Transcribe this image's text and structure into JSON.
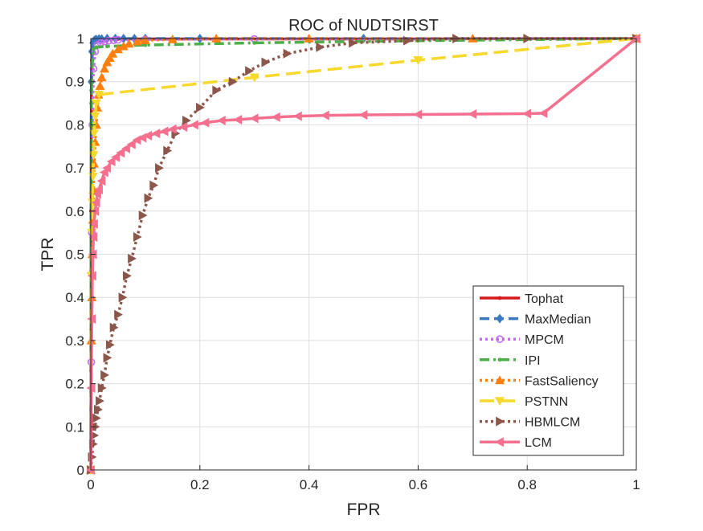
{
  "chart_data": {
    "type": "line",
    "title": "ROC of NUDTSIRST",
    "xlabel": "FPR",
    "ylabel": "TPR",
    "xlim": [
      0,
      1
    ],
    "ylim": [
      0,
      1
    ],
    "x_ticks": [
      "0",
      "0.2",
      "0.4",
      "0.6",
      "0.8",
      "1"
    ],
    "x_tick_values": [
      0,
      0.2,
      0.4,
      0.6,
      0.8,
      1
    ],
    "y_ticks": [
      "0",
      "0.1",
      "0.2",
      "0.3",
      "0.4",
      "0.5",
      "0.6",
      "0.7",
      "0.8",
      "0.9",
      "1"
    ],
    "y_tick_values": [
      0,
      0.1,
      0.2,
      0.3,
      0.4,
      0.5,
      0.6,
      0.7,
      0.8,
      0.9,
      1
    ],
    "grid": true,
    "legend_position": "bottom-right",
    "series": [
      {
        "name": "Tophat",
        "color": "#d7191c",
        "dash": "solid",
        "marker": "dot",
        "x": [
          0,
          0.0005,
          0.001,
          0.002,
          0.004,
          0.006,
          0.01,
          0.05,
          0.2,
          0.5,
          1
        ],
        "y": [
          0,
          0.6,
          0.85,
          0.95,
          0.985,
          0.995,
          0.998,
          0.999,
          0.999,
          0.999,
          1
        ]
      },
      {
        "name": "MaxMedian",
        "color": "#3a78bf",
        "dash": "dash",
        "marker": "diamond",
        "x": [
          0,
          0.001,
          0.002,
          0.004,
          0.006,
          0.008,
          0.01,
          0.015,
          0.02,
          0.03,
          0.045,
          0.06,
          0.08,
          0.1,
          0.2,
          0.5,
          1
        ],
        "y": [
          0,
          0.9,
          0.97,
          0.99,
          0.995,
          0.997,
          0.998,
          0.999,
          0.999,
          1,
          1,
          1,
          1,
          1,
          1,
          1,
          1
        ]
      },
      {
        "name": "MPCM",
        "color": "#c16bf2",
        "dash": "dot",
        "marker": "circle",
        "x": [
          0,
          0.001,
          0.002,
          0.003,
          0.005,
          0.008,
          0.012,
          0.018,
          0.025,
          0.033,
          0.042,
          0.05,
          0.1,
          0.3,
          1
        ],
        "y": [
          0,
          0.25,
          0.55,
          0.8,
          0.93,
          0.97,
          0.985,
          0.99,
          0.993,
          0.995,
          0.996,
          0.997,
          0.998,
          0.999,
          1
        ]
      },
      {
        "name": "IPI",
        "color": "#4daf4a",
        "dash": "dashdot",
        "marker": "dot",
        "x": [
          0,
          0.001,
          0.003,
          0.005,
          0.01,
          0.03,
          0.1,
          0.3,
          0.6,
          1
        ],
        "y": [
          0,
          0.88,
          0.95,
          0.975,
          0.98,
          0.982,
          0.985,
          0.99,
          0.995,
          1
        ]
      },
      {
        "name": "FastSaliency",
        "color": "#ff7f0e",
        "dash": "dot",
        "marker": "triangle-up",
        "x": [
          0,
          0.001,
          0.002,
          0.003,
          0.004,
          0.005,
          0.006,
          0.008,
          0.01,
          0.012,
          0.014,
          0.017,
          0.02,
          0.025,
          0.03,
          0.035,
          0.04,
          0.05,
          0.06,
          0.07,
          0.085,
          0.1,
          0.15,
          0.23,
          0.4,
          0.7,
          1
        ],
        "y": [
          0,
          0.3,
          0.4,
          0.5,
          0.58,
          0.65,
          0.71,
          0.76,
          0.8,
          0.84,
          0.87,
          0.89,
          0.91,
          0.93,
          0.945,
          0.955,
          0.965,
          0.975,
          0.982,
          0.988,
          0.993,
          0.996,
          0.998,
          1,
          1,
          1,
          1
        ]
      },
      {
        "name": "PSTNN",
        "color": "#f7d82c",
        "dash": "longdash",
        "marker": "triangle-down",
        "x": [
          0,
          0.001,
          0.002,
          0.003,
          0.004,
          0.005,
          0.006,
          0.008,
          0.01,
          0.015,
          0.3,
          0.6,
          1
        ],
        "y": [
          0,
          0.45,
          0.55,
          0.62,
          0.68,
          0.73,
          0.78,
          0.82,
          0.85,
          0.87,
          0.91,
          0.95,
          1
        ]
      },
      {
        "name": "HBMLCM",
        "color": "#8c564b",
        "dash": "dot",
        "marker": "triangle-right",
        "x": [
          0,
          0.002,
          0.004,
          0.006,
          0.008,
          0.01,
          0.013,
          0.016,
          0.02,
          0.025,
          0.03,
          0.035,
          0.042,
          0.05,
          0.058,
          0.066,
          0.075,
          0.085,
          0.095,
          0.105,
          0.115,
          0.125,
          0.14,
          0.155,
          0.175,
          0.2,
          0.23,
          0.26,
          0.29,
          0.32,
          0.36,
          0.42,
          0.48,
          0.58,
          0.67,
          0.8,
          1
        ],
        "y": [
          0,
          0.03,
          0.06,
          0.08,
          0.1,
          0.12,
          0.14,
          0.16,
          0.19,
          0.22,
          0.26,
          0.29,
          0.33,
          0.36,
          0.4,
          0.45,
          0.49,
          0.54,
          0.59,
          0.63,
          0.66,
          0.7,
          0.74,
          0.78,
          0.81,
          0.84,
          0.88,
          0.9,
          0.925,
          0.945,
          0.965,
          0.98,
          0.99,
          0.995,
          1,
          1,
          1
        ]
      },
      {
        "name": "LCM",
        "color": "#f5708f",
        "dash": "solid",
        "marker": "triangle-left",
        "x": [
          0,
          0.001,
          0.002,
          0.003,
          0.004,
          0.005,
          0.006,
          0.008,
          0.01,
          0.012,
          0.015,
          0.02,
          0.025,
          0.03,
          0.038,
          0.046,
          0.055,
          0.065,
          0.075,
          0.085,
          0.095,
          0.105,
          0.12,
          0.135,
          0.15,
          0.17,
          0.19,
          0.21,
          0.24,
          0.27,
          0.3,
          0.34,
          0.38,
          0.43,
          0.5,
          0.6,
          0.7,
          0.8,
          0.83,
          1
        ],
        "y": [
          0,
          0.19,
          0.35,
          0.45,
          0.5,
          0.54,
          0.57,
          0.6,
          0.62,
          0.64,
          0.65,
          0.67,
          0.69,
          0.7,
          0.715,
          0.725,
          0.735,
          0.745,
          0.755,
          0.765,
          0.77,
          0.775,
          0.78,
          0.785,
          0.79,
          0.795,
          0.8,
          0.805,
          0.81,
          0.812,
          0.815,
          0.818,
          0.82,
          0.822,
          0.823,
          0.824,
          0.825,
          0.826,
          0.827,
          1
        ]
      }
    ]
  }
}
